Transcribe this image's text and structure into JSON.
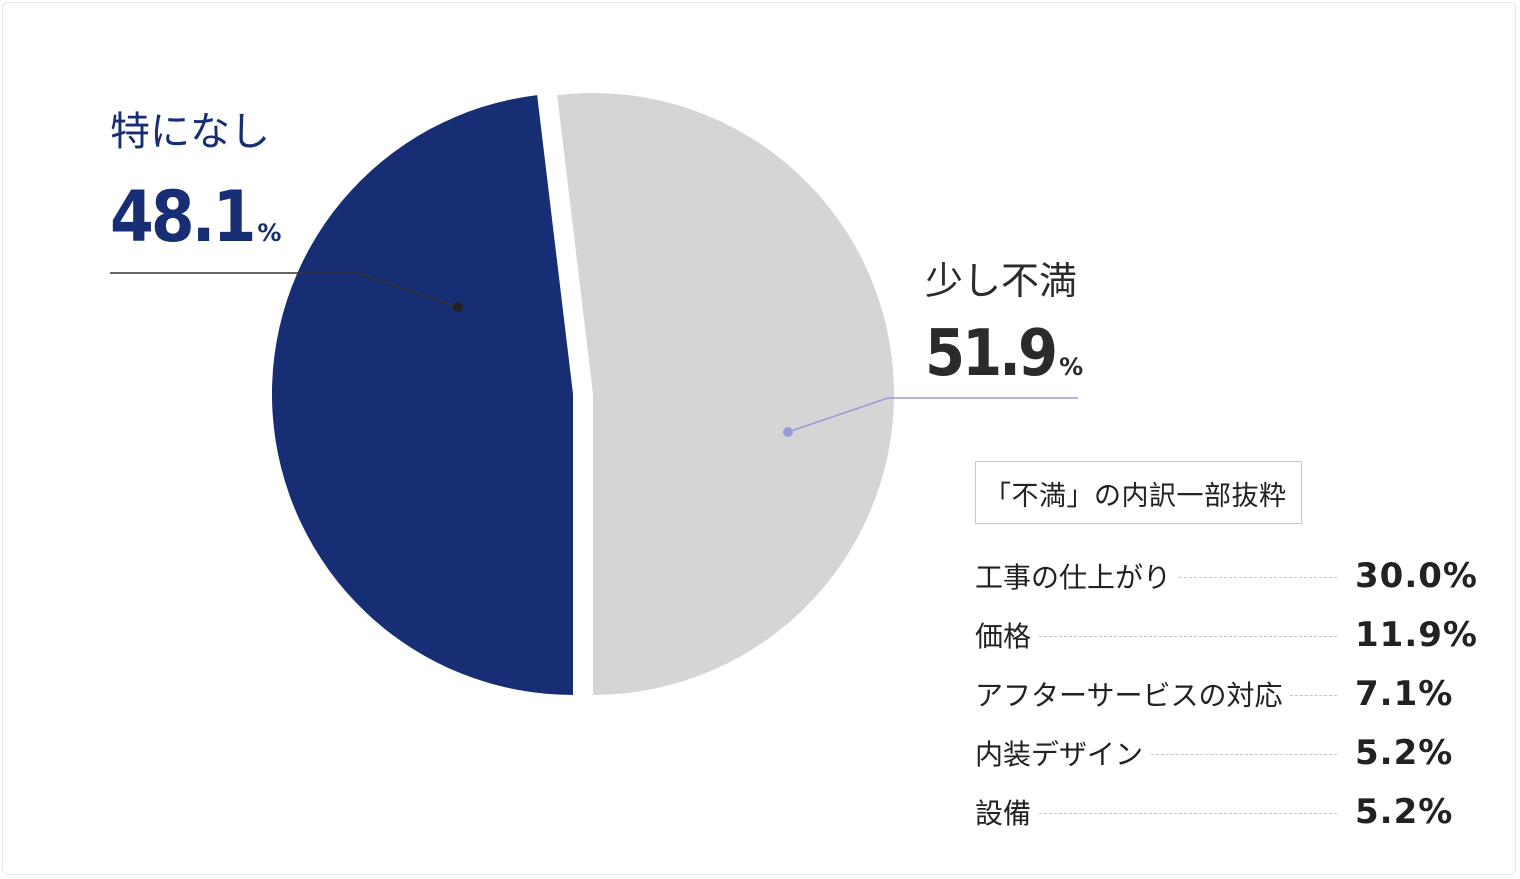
{
  "chart_data": {
    "type": "pie",
    "slices": [
      {
        "label": "特になし",
        "value": 48.1,
        "color": "#172e74"
      },
      {
        "label": "少し不満",
        "value": 51.9,
        "color": "#d5d5d5"
      }
    ],
    "unit": "%",
    "breakdown": {
      "title": "「不満」の内訳一部抜粋",
      "items": [
        {
          "label": "工事の仕上がり",
          "value": "30.0%"
        },
        {
          "label": "価格",
          "value": "11.9%"
        },
        {
          "label": "アフターサービスの対応",
          "value": "7.1%"
        },
        {
          "label": "内装デザイン",
          "value": "5.2%"
        },
        {
          "label": "設備",
          "value": "5.2%"
        }
      ]
    }
  },
  "labels": {
    "none_name": "特になし",
    "none_value": "48.1",
    "little_name": "少し不満",
    "little_value": "51.9",
    "percent_sign": "%"
  }
}
